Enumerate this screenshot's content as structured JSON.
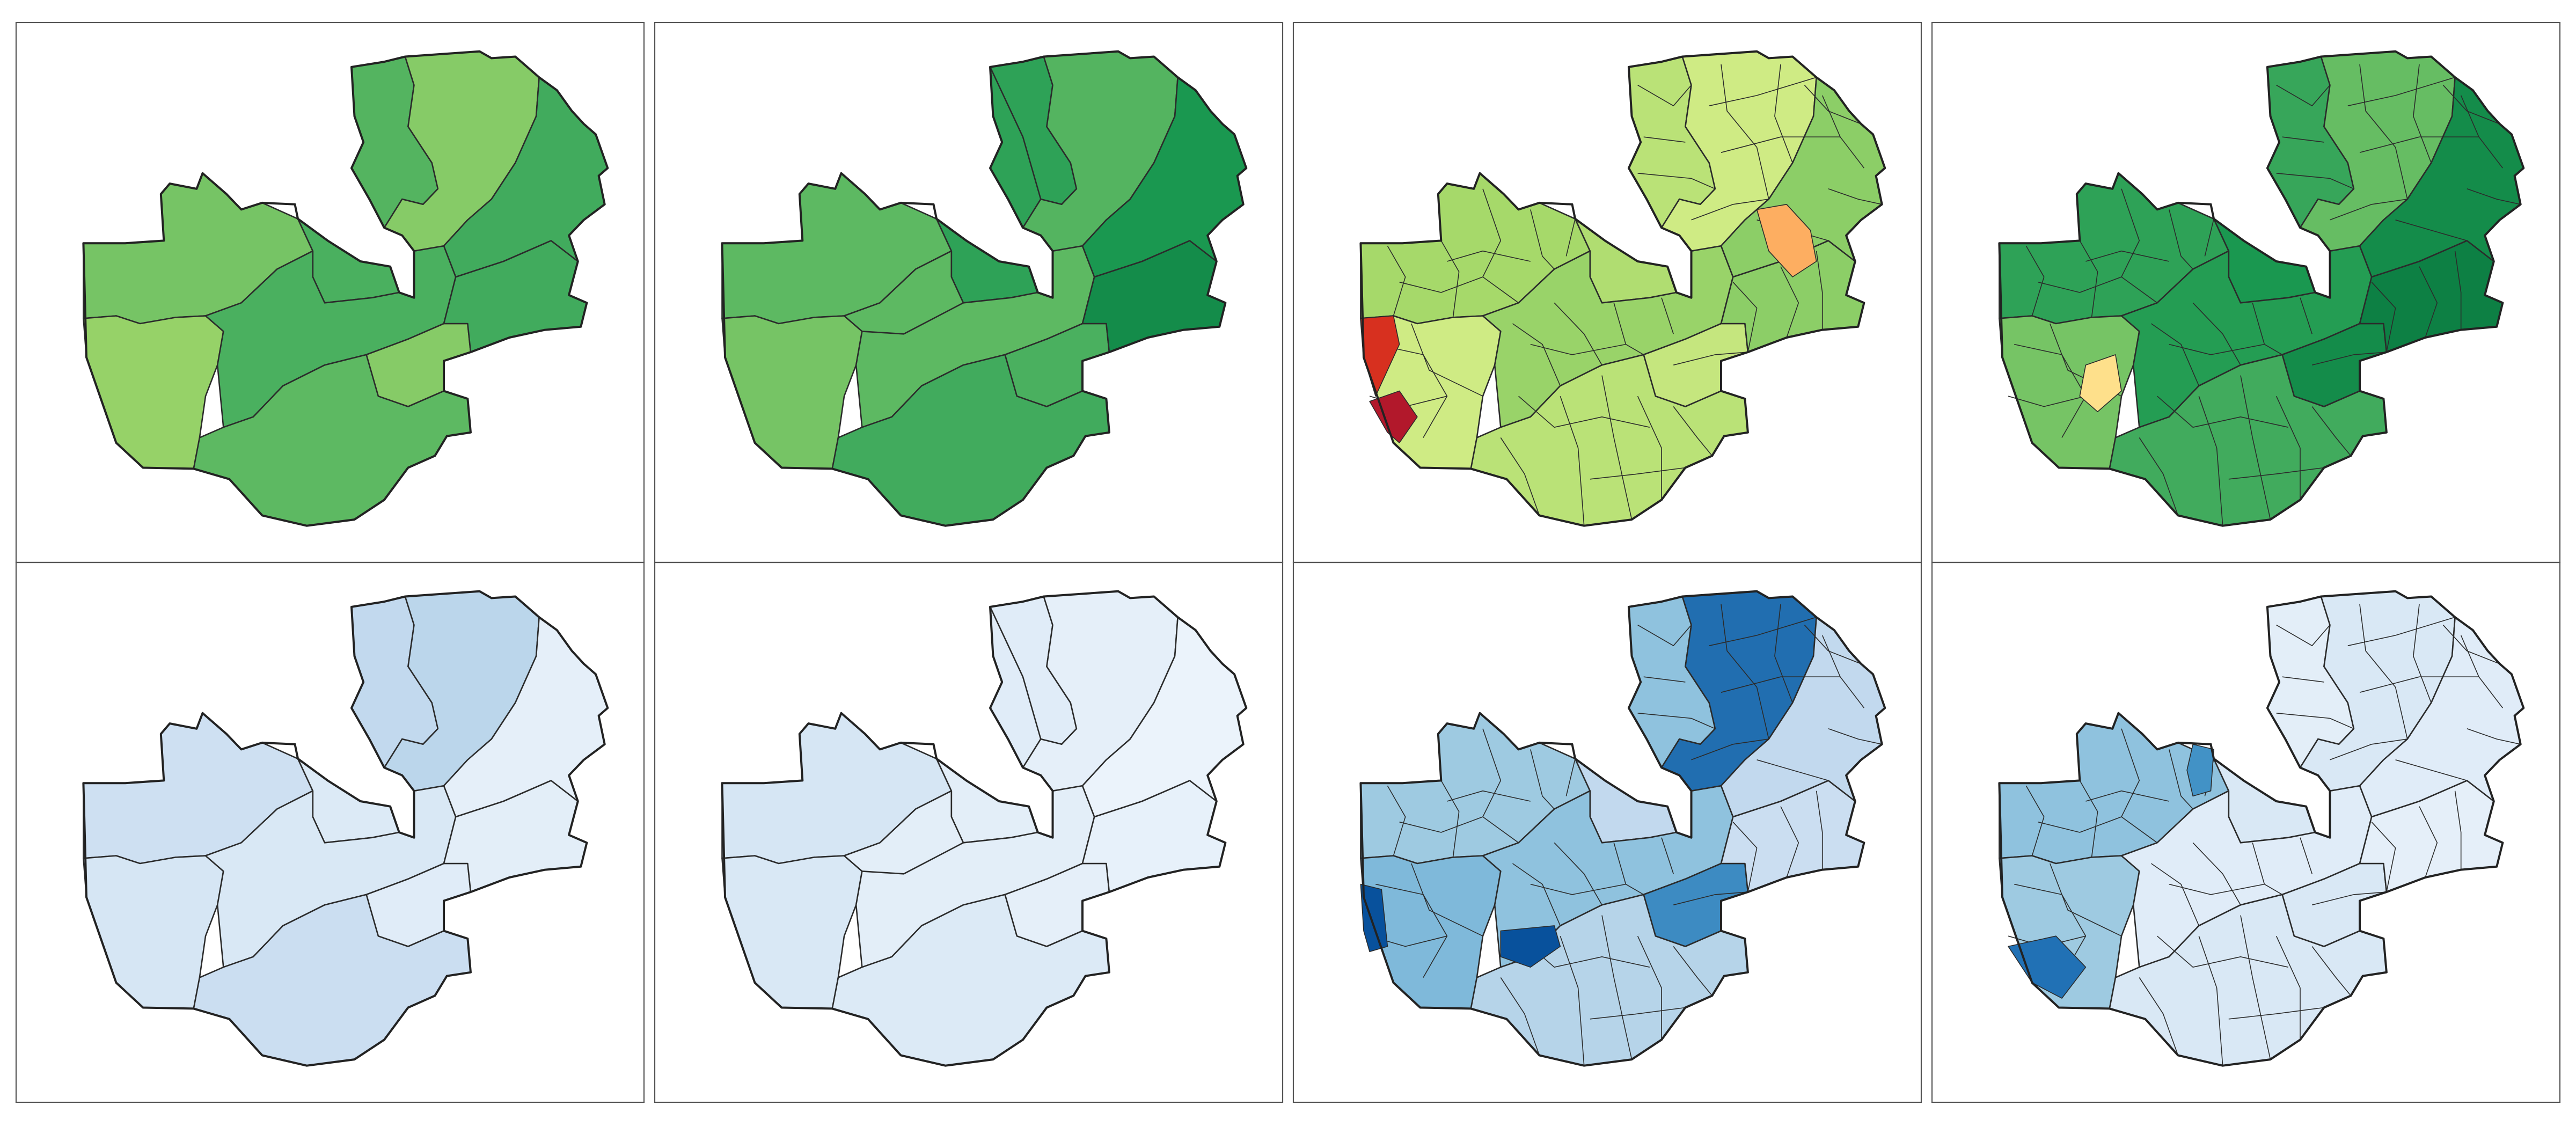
{
  "figure": {
    "layout": {
      "rows": 2,
      "cols": 4
    },
    "panels": [
      {
        "id": "p1",
        "row": 0,
        "col": 0,
        "palette": "green",
        "detail": "provinces-a",
        "region_levels": [
          0.35,
          0.55,
          0.25,
          0.55,
          0.45,
          0.3,
          0.6,
          0.5,
          0.3,
          0.6
        ]
      },
      {
        "id": "p2",
        "row": 0,
        "col": 1,
        "palette": "green",
        "detail": "provinces-b",
        "region_levels": [
          0.45,
          0.7,
          0.35,
          0.45,
          0.6,
          0.55,
          0.85,
          0.7,
          0.5,
          0.8
        ]
      },
      {
        "id": "p3",
        "row": 0,
        "col": 2,
        "palette": "green-red",
        "detail": "districts",
        "region_levels": [
          0.5,
          0.45,
          0.3,
          0.55,
          0.4,
          0.35,
          0.6,
          0.4,
          0.3,
          0.6
        ],
        "highlights": [
          {
            "name": "west-red-1",
            "color": "#d7301f"
          },
          {
            "name": "west-red-2",
            "color": "#b2182b"
          },
          {
            "name": "east-orange",
            "color": "#fdae61"
          }
        ]
      },
      {
        "id": "p4",
        "row": 0,
        "col": 3,
        "palette": "green",
        "detail": "districts",
        "region_levels": [
          0.7,
          0.8,
          0.35,
          0.75,
          0.6,
          0.85,
          0.9,
          0.65,
          0.4,
          0.85
        ],
        "highlights": [
          {
            "name": "west-yellow",
            "color": "#fee08b"
          }
        ]
      },
      {
        "id": "p5",
        "row": 1,
        "col": 0,
        "palette": "blue",
        "detail": "provinces-a",
        "region_levels": [
          0.28,
          0.18,
          0.22,
          0.2,
          0.3,
          0.15,
          0.12,
          0.35,
          0.38,
          0.1
        ]
      },
      {
        "id": "p6",
        "row": 1,
        "col": 1,
        "palette": "blue",
        "detail": "provinces-b",
        "region_levels": [
          0.22,
          0.12,
          0.2,
          0.12,
          0.18,
          0.1,
          0.08,
          0.15,
          0.1,
          0.05
        ]
      },
      {
        "id": "p7",
        "row": 1,
        "col": 2,
        "palette": "blue",
        "detail": "districts",
        "region_levels": [
          0.5,
          0.35,
          0.6,
          0.55,
          0.4,
          0.8,
          0.3,
          0.55,
          0.9,
          0.35
        ],
        "highlights": [
          {
            "name": "central-dark",
            "color": "#08519c"
          },
          {
            "name": "west-dark",
            "color": "#08519c"
          }
        ]
      },
      {
        "id": "p8",
        "row": 1,
        "col": 3,
        "palette": "blue",
        "detail": "districts",
        "region_levels": [
          0.55,
          0.2,
          0.5,
          0.15,
          0.2,
          0.2,
          0.1,
          0.12,
          0.2,
          0.15
        ],
        "highlights": [
          {
            "name": "sw-dark",
            "color": "#2171b5"
          },
          {
            "name": "north-mid",
            "color": "#4292c6"
          }
        ]
      }
    ],
    "colors": {
      "green": [
        "#d9f0a3",
        "#a6d96a",
        "#66bd63",
        "#41ab5d",
        "#1a9850",
        "#006837"
      ],
      "blue": [
        "#f0f6fc",
        "#deebf7",
        "#c6dbef",
        "#9ecae1",
        "#6baed6",
        "#3182bd",
        "#08519c"
      ],
      "green-red": [
        "#ffffbf",
        "#d9ef8b",
        "#a6d96a",
        "#66bd63",
        "#1a9850"
      ],
      "frame": "#555555",
      "border": "#2b2b2b"
    }
  }
}
